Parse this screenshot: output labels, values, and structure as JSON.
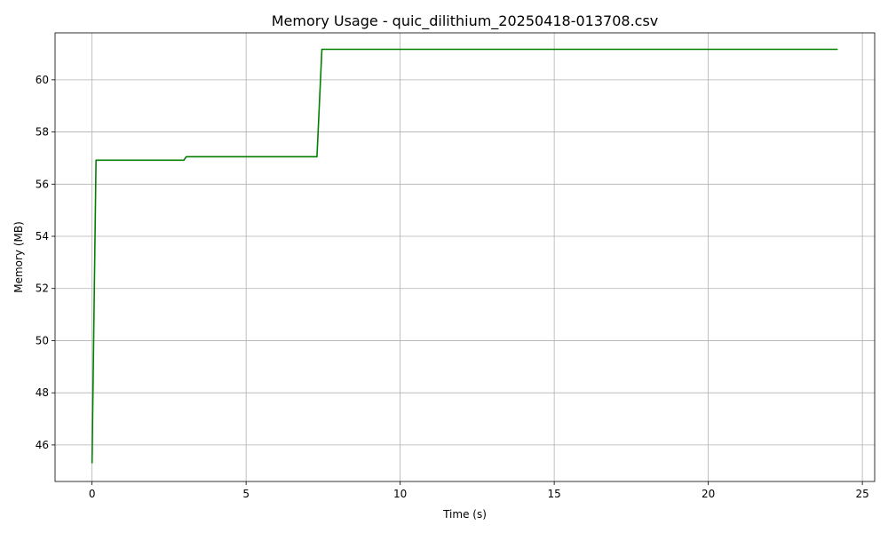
{
  "chart_data": {
    "type": "line",
    "title": "Memory Usage - quic_dilithium_20250418-013708.csv",
    "xlabel": "Time (s)",
    "ylabel": "Memory (MB)",
    "xlim": [
      -1.2,
      25.4
    ],
    "ylim": [
      44.6,
      61.8
    ],
    "x_ticks": [
      0,
      5,
      10,
      15,
      20,
      25
    ],
    "y_ticks": [
      46,
      48,
      50,
      52,
      54,
      56,
      58,
      60
    ],
    "grid": true,
    "legend": "none",
    "colors": {
      "line": "#008000",
      "grid": "#b0b0b0",
      "axis": "#000000"
    },
    "series": [
      {
        "name": "Memory",
        "x": [
          0,
          0.13,
          1.0,
          2.0,
          2.98,
          3.06,
          3.5,
          5.0,
          7.3,
          7.46,
          10.0,
          15.0,
          20.0,
          24.2
        ],
        "y": [
          45.3,
          56.92,
          56.92,
          56.92,
          56.92,
          57.05,
          57.05,
          57.05,
          57.05,
          61.17,
          61.17,
          61.17,
          61.17,
          61.17
        ]
      }
    ]
  }
}
